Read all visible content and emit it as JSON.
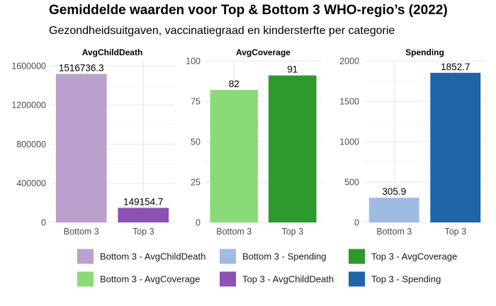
{
  "title": "Gemiddelde waarden voor Top & Bottom 3 WHO-regio’s (2022)",
  "subtitle": "Gezondheidsuitgaven, vaccinatiegraad en kindersterfte per categorie",
  "chart_data": {
    "type": "bar",
    "facets": [
      {
        "name": "AvgChildDeath",
        "categories": [
          "Bottom 3",
          "Top 3"
        ],
        "values": [
          1516736.3,
          149154.7
        ],
        "labels": [
          "1516736.3",
          "149154.7"
        ],
        "colors": [
          "#BBA1CC",
          "#8C52B3"
        ],
        "ylim": [
          0,
          1650000
        ],
        "yticks": [
          0,
          400000,
          800000,
          1200000,
          1600000
        ],
        "ytick_labels": [
          "0",
          "400000",
          "800000",
          "1200000",
          "1600000"
        ]
      },
      {
        "name": "AvgCoverage",
        "categories": [
          "Bottom 3",
          "Top 3"
        ],
        "values": [
          82,
          91
        ],
        "labels": [
          "82",
          "91"
        ],
        "colors": [
          "#8BDA78",
          "#2C9A2C"
        ],
        "ylim": [
          0,
          100
        ],
        "yticks": [
          0,
          25,
          50,
          75,
          100
        ],
        "ytick_labels": [
          "0",
          "25",
          "50",
          "75",
          "100"
        ]
      },
      {
        "name": "Spending",
        "categories": [
          "Bottom 3",
          "Top 3"
        ],
        "values": [
          305.9,
          1852.7
        ],
        "labels": [
          "305.9",
          "1852.7"
        ],
        "colors": [
          "#A0BBE2",
          "#1F65A8"
        ],
        "ylim": [
          0,
          2000
        ],
        "yticks": [
          0,
          500,
          1000,
          1500,
          2000
        ],
        "ytick_labels": [
          "0",
          "500",
          "1000",
          "1500",
          "2000"
        ]
      }
    ],
    "legend": [
      {
        "label": "Bottom 3 - AvgChildDeath",
        "color": "#BBA1CC"
      },
      {
        "label": "Bottom 3 - AvgCoverage",
        "color": "#8BDA78"
      },
      {
        "label": "Bottom 3 - Spending",
        "color": "#A0BBE2"
      },
      {
        "label": "Top 3 - AvgChildDeath",
        "color": "#8C52B3"
      },
      {
        "label": "Top 3 - AvgCoverage",
        "color": "#2C9A2C"
      },
      {
        "label": "Top 3 - Spending",
        "color": "#1F65A8"
      }
    ],
    "legend_position": "bottom",
    "grid": true
  }
}
